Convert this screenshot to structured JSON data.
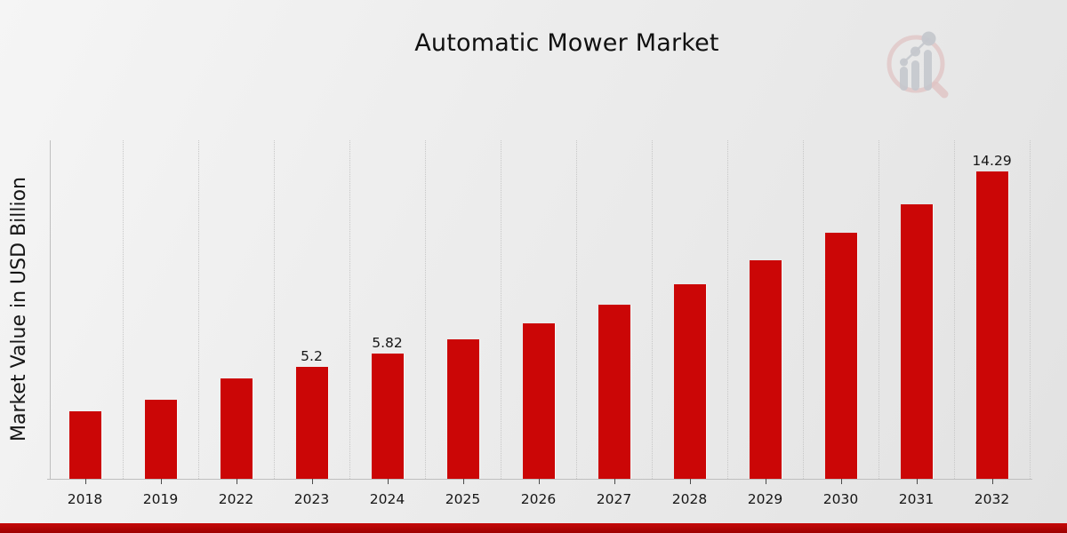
{
  "page": {
    "title": "Automatic Mower Market"
  },
  "branding": {
    "logo_icon": "magnifier-bar-chart-logo",
    "logo_ring_color": "#dfbdbd",
    "logo_bars_color": "#bfc2c9",
    "banner_top_color": "#c50a0a",
    "banner_bottom_color": "#9d0202"
  },
  "chart_data": {
    "type": "bar",
    "title": "Automatic Mower Market",
    "xlabel": "",
    "ylabel": "Market Value in USD Billion",
    "categories": [
      "2018",
      "2019",
      "2022",
      "2023",
      "2024",
      "2025",
      "2026",
      "2027",
      "2028",
      "2029",
      "2030",
      "2031",
      "2032"
    ],
    "values": [
      3.15,
      3.68,
      4.67,
      5.2,
      5.82,
      6.48,
      7.23,
      8.1,
      9.05,
      10.16,
      11.44,
      12.76,
      14.29
    ],
    "bar_labels": [
      "",
      "",
      "",
      "5.2",
      "5.82",
      "",
      "",
      "",
      "",
      "",
      "",
      "",
      "14.29"
    ],
    "bar_color": "#cb0606",
    "ylim": [
      0,
      15.75
    ],
    "grid": "vertical-dotted-at-category-boundaries",
    "gridline_color": "#c7c7c7",
    "axis_color": "#bfbfbf",
    "text_color": "#161616",
    "legend": "none"
  }
}
